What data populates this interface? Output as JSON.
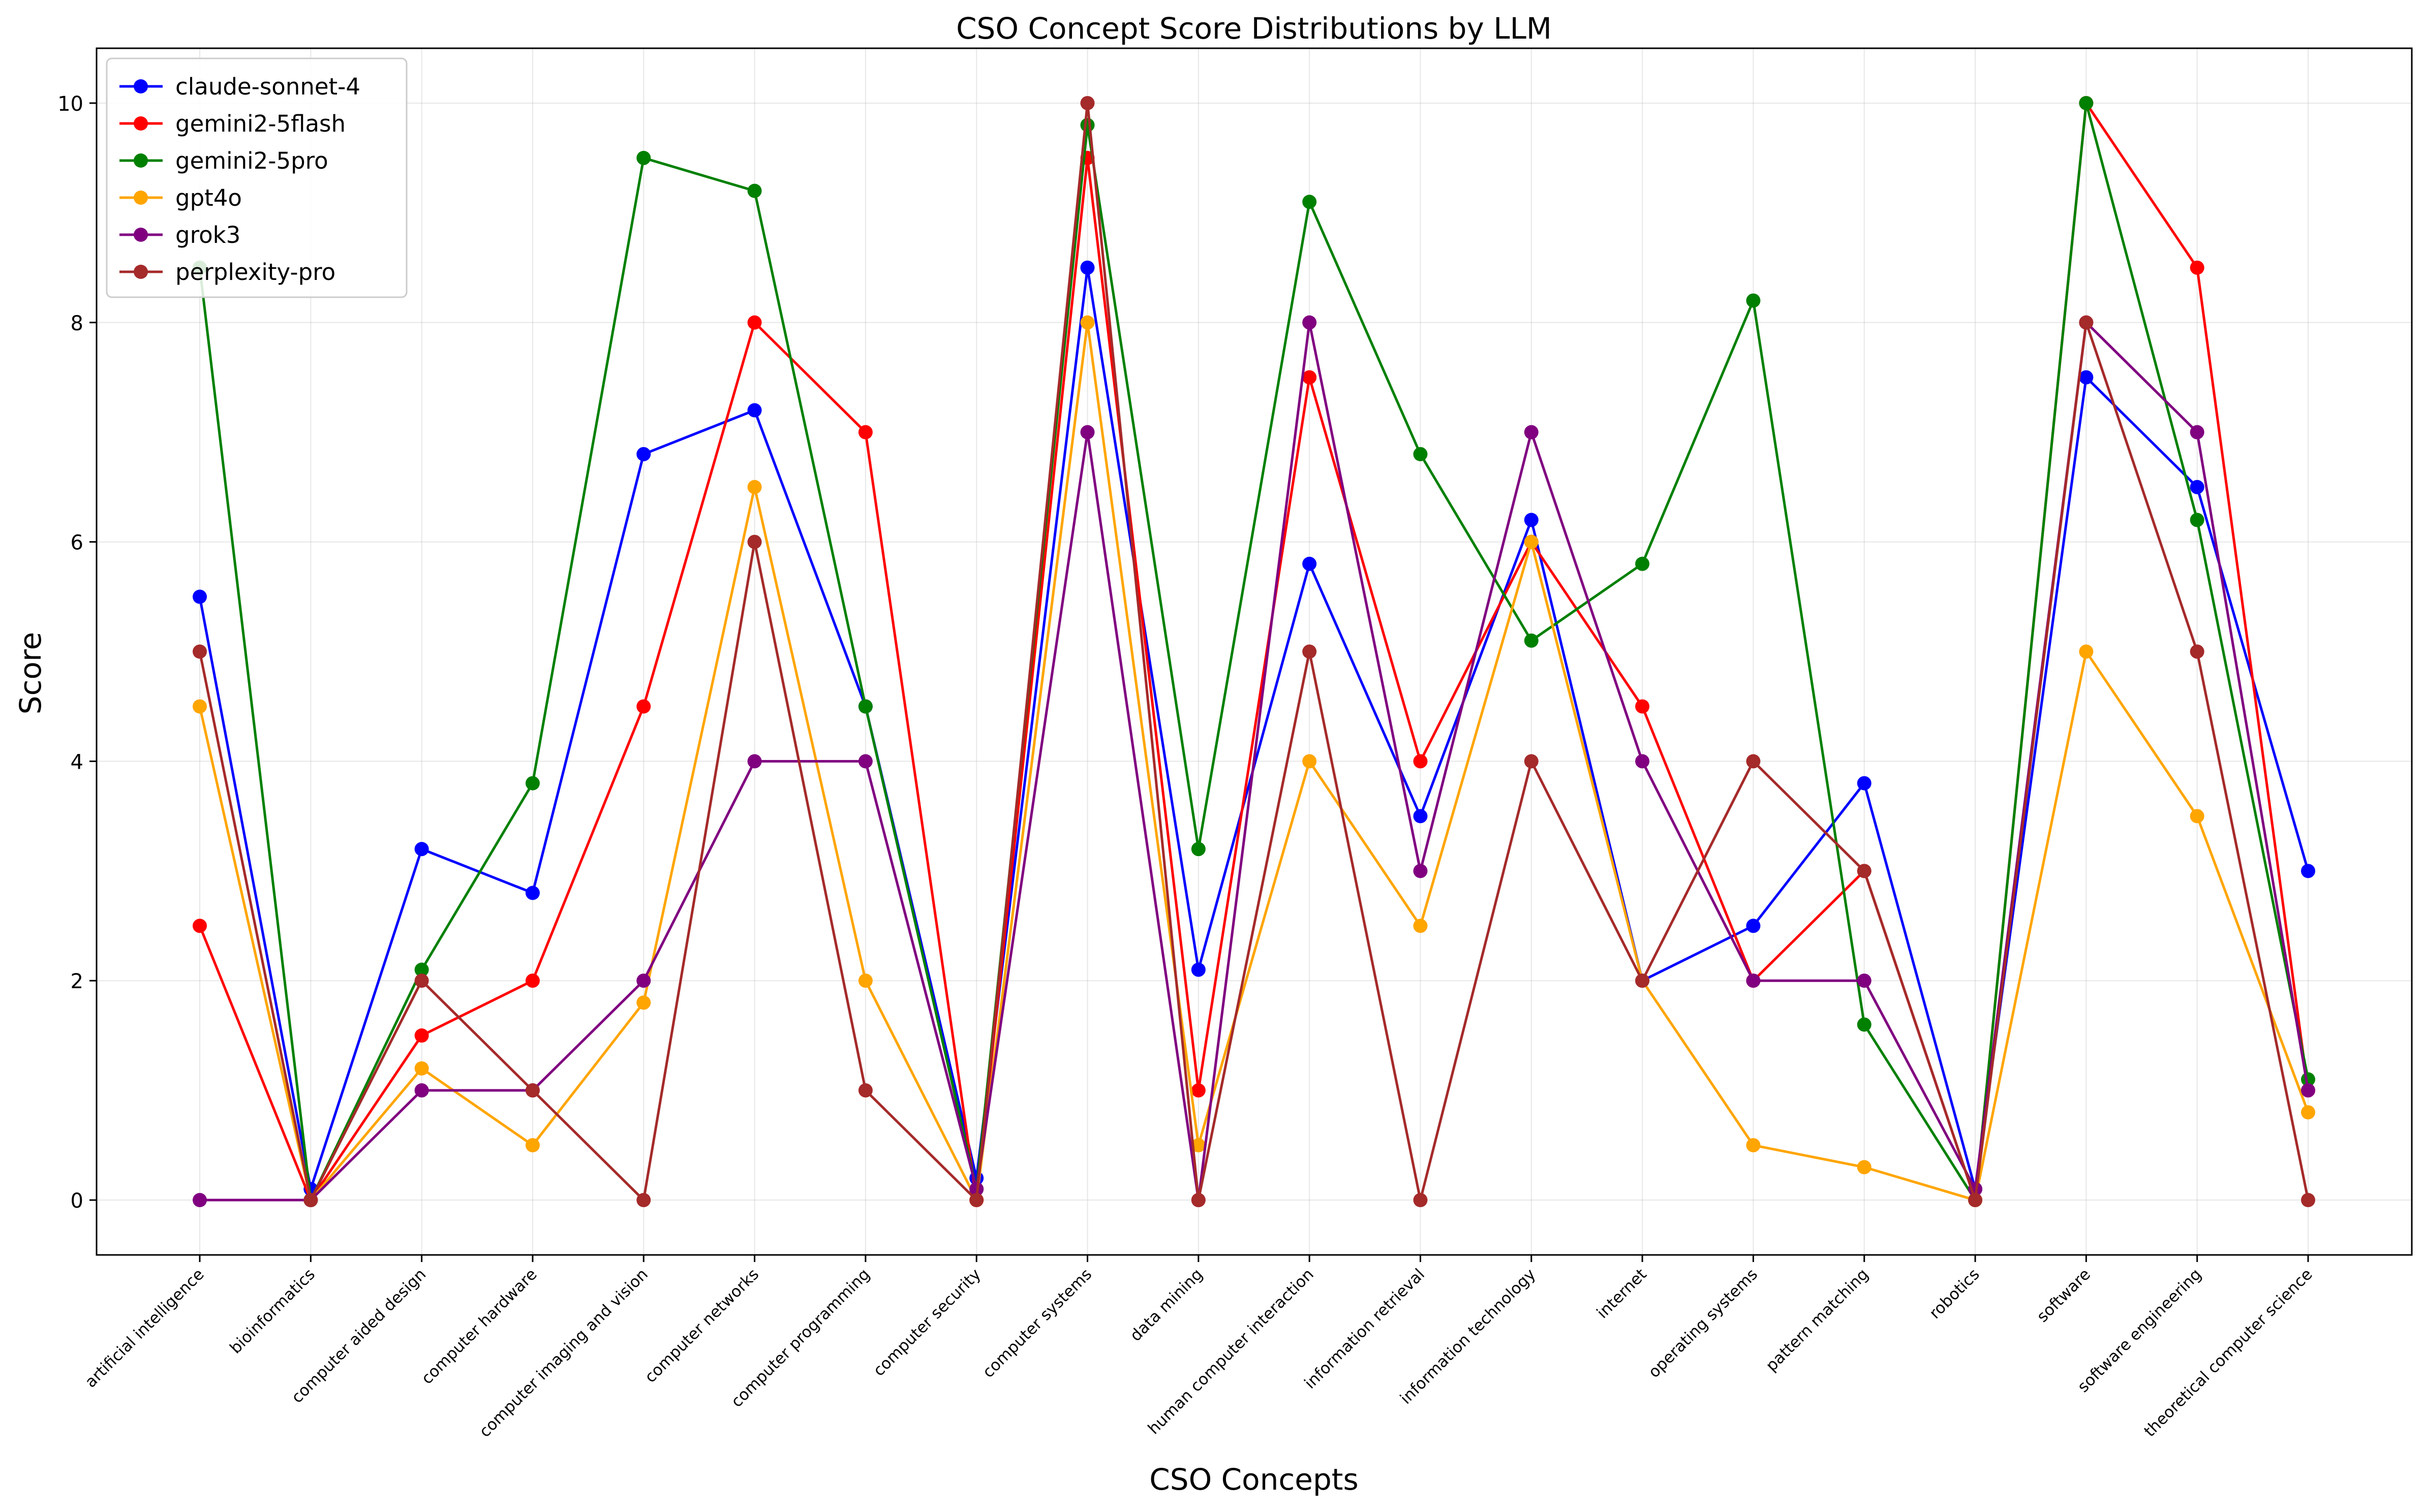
{
  "chart_data": {
    "type": "line",
    "title": "CSO Concept Score Distributions by LLM",
    "xlabel": "CSO Concepts",
    "ylabel": "Score",
    "ylim": [
      -0.5,
      10.5
    ],
    "yticks": [
      0,
      2,
      4,
      6,
      8,
      10
    ],
    "grid": true,
    "legend_position": "top-left",
    "categories": [
      "artificial intelligence",
      "bioinformatics",
      "computer aided design",
      "computer hardware",
      "computer imaging and vision",
      "computer networks",
      "computer programming",
      "computer security",
      "computer systems",
      "data mining",
      "human computer interaction",
      "information retrieval",
      "information technology",
      "internet",
      "operating systems",
      "pattern matching",
      "robotics",
      "software",
      "software engineering",
      "theoretical computer science"
    ],
    "series": [
      {
        "name": "claude-sonnet-4",
        "color": "#0000ff",
        "values": [
          5.5,
          0.1,
          3.2,
          2.8,
          6.8,
          7.2,
          4.5,
          0.2,
          8.5,
          2.1,
          5.8,
          3.5,
          6.2,
          2.0,
          2.5,
          3.8,
          0.1,
          7.5,
          6.5,
          3.0
        ]
      },
      {
        "name": "gemini2-5flash",
        "color": "#ff0000",
        "values": [
          2.5,
          0.0,
          1.5,
          2.0,
          4.5,
          8.0,
          7.0,
          0.0,
          9.5,
          1.0,
          7.5,
          4.0,
          6.0,
          4.5,
          2.0,
          3.0,
          0.0,
          10.0,
          8.5,
          1.0
        ]
      },
      {
        "name": "gemini2-5pro",
        "color": "#008000",
        "values": [
          8.5,
          0.0,
          2.1,
          3.8,
          9.5,
          9.2,
          4.5,
          0.1,
          9.8,
          3.2,
          9.1,
          6.8,
          5.1,
          5.8,
          8.2,
          1.6,
          0.0,
          10.0,
          6.2,
          1.1
        ]
      },
      {
        "name": "gpt4o",
        "color": "#ffa500",
        "values": [
          4.5,
          0.0,
          1.2,
          0.5,
          1.8,
          6.5,
          2.0,
          0.0,
          8.0,
          0.5,
          4.0,
          2.5,
          6.0,
          2.0,
          0.5,
          0.3,
          0.0,
          5.0,
          3.5,
          0.8
        ]
      },
      {
        "name": "grok3",
        "color": "#800080",
        "values": [
          0.0,
          0.0,
          1.0,
          1.0,
          2.0,
          4.0,
          4.0,
          0.1,
          7.0,
          0.0,
          8.0,
          3.0,
          7.0,
          4.0,
          2.0,
          2.0,
          0.1,
          8.0,
          7.0,
          1.0
        ]
      },
      {
        "name": "perplexity-pro",
        "color": "#a52a2a",
        "values": [
          5.0,
          0.0,
          2.0,
          1.0,
          0.0,
          6.0,
          1.0,
          0.0,
          10.0,
          0.0,
          5.0,
          0.0,
          4.0,
          2.0,
          4.0,
          3.0,
          0.0,
          8.0,
          5.0,
          0.0
        ]
      }
    ]
  }
}
